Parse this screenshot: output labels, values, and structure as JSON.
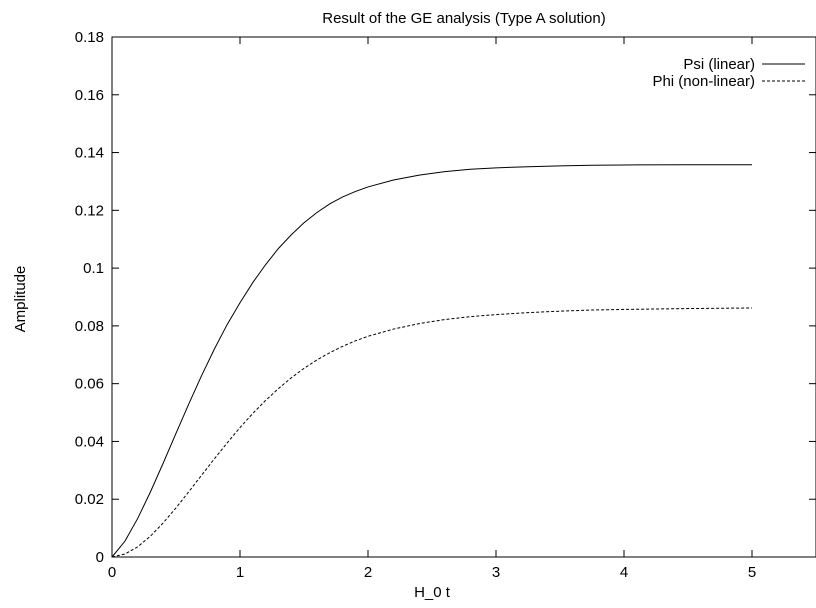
{
  "chart_data": {
    "type": "line",
    "title": "Result of the GE analysis (Type A solution)",
    "xlabel": "H_0 t",
    "ylabel": "Amplitude",
    "xlim": [
      0,
      5.5
    ],
    "ylim": [
      0,
      0.18
    ],
    "x_ticks": [
      "0",
      "1",
      "2",
      "3",
      "4",
      "5"
    ],
    "y_ticks": [
      "0",
      "0.02",
      "0.04",
      "0.06",
      "0.08",
      "0.1",
      "0.12",
      "0.14",
      "0.16",
      "0.18"
    ],
    "grid": false,
    "legend_position": "top-right",
    "x": [
      0,
      0.1,
      0.2,
      0.3,
      0.4,
      0.5,
      0.6,
      0.7,
      0.8,
      0.9,
      1.0,
      1.1,
      1.2,
      1.3,
      1.4,
      1.5,
      1.6,
      1.7,
      1.8,
      1.9,
      2.0,
      2.2,
      2.4,
      2.6,
      2.8,
      3.0,
      3.25,
      3.5,
      3.75,
      4.0,
      4.5,
      5.0
    ],
    "series": [
      {
        "name": "Psi (linear)",
        "style": "solid",
        "color": "#000000",
        "values": [
          0,
          0.0054,
          0.0133,
          0.0225,
          0.0325,
          0.0428,
          0.053,
          0.0628,
          0.072,
          0.0805,
          0.088,
          0.095,
          0.1012,
          0.1068,
          0.1115,
          0.1157,
          0.1192,
          0.1222,
          0.1246,
          0.1265,
          0.1281,
          0.1305,
          0.1322,
          0.1334,
          0.1342,
          0.1347,
          0.1351,
          0.1354,
          0.1356,
          0.1357,
          0.1358,
          0.1358
        ]
      },
      {
        "name": "Phi  (non-linear)",
        "style": "dashed",
        "color": "#000000",
        "values": [
          0,
          0.001,
          0.0035,
          0.0072,
          0.0118,
          0.017,
          0.0226,
          0.0283,
          0.034,
          0.0395,
          0.0448,
          0.0497,
          0.0542,
          0.0583,
          0.062,
          0.0653,
          0.0682,
          0.0707,
          0.0729,
          0.0748,
          0.0764,
          0.0789,
          0.0808,
          0.0822,
          0.0832,
          0.0839,
          0.0846,
          0.0851,
          0.0855,
          0.0857,
          0.086,
          0.0862
        ]
      }
    ]
  }
}
